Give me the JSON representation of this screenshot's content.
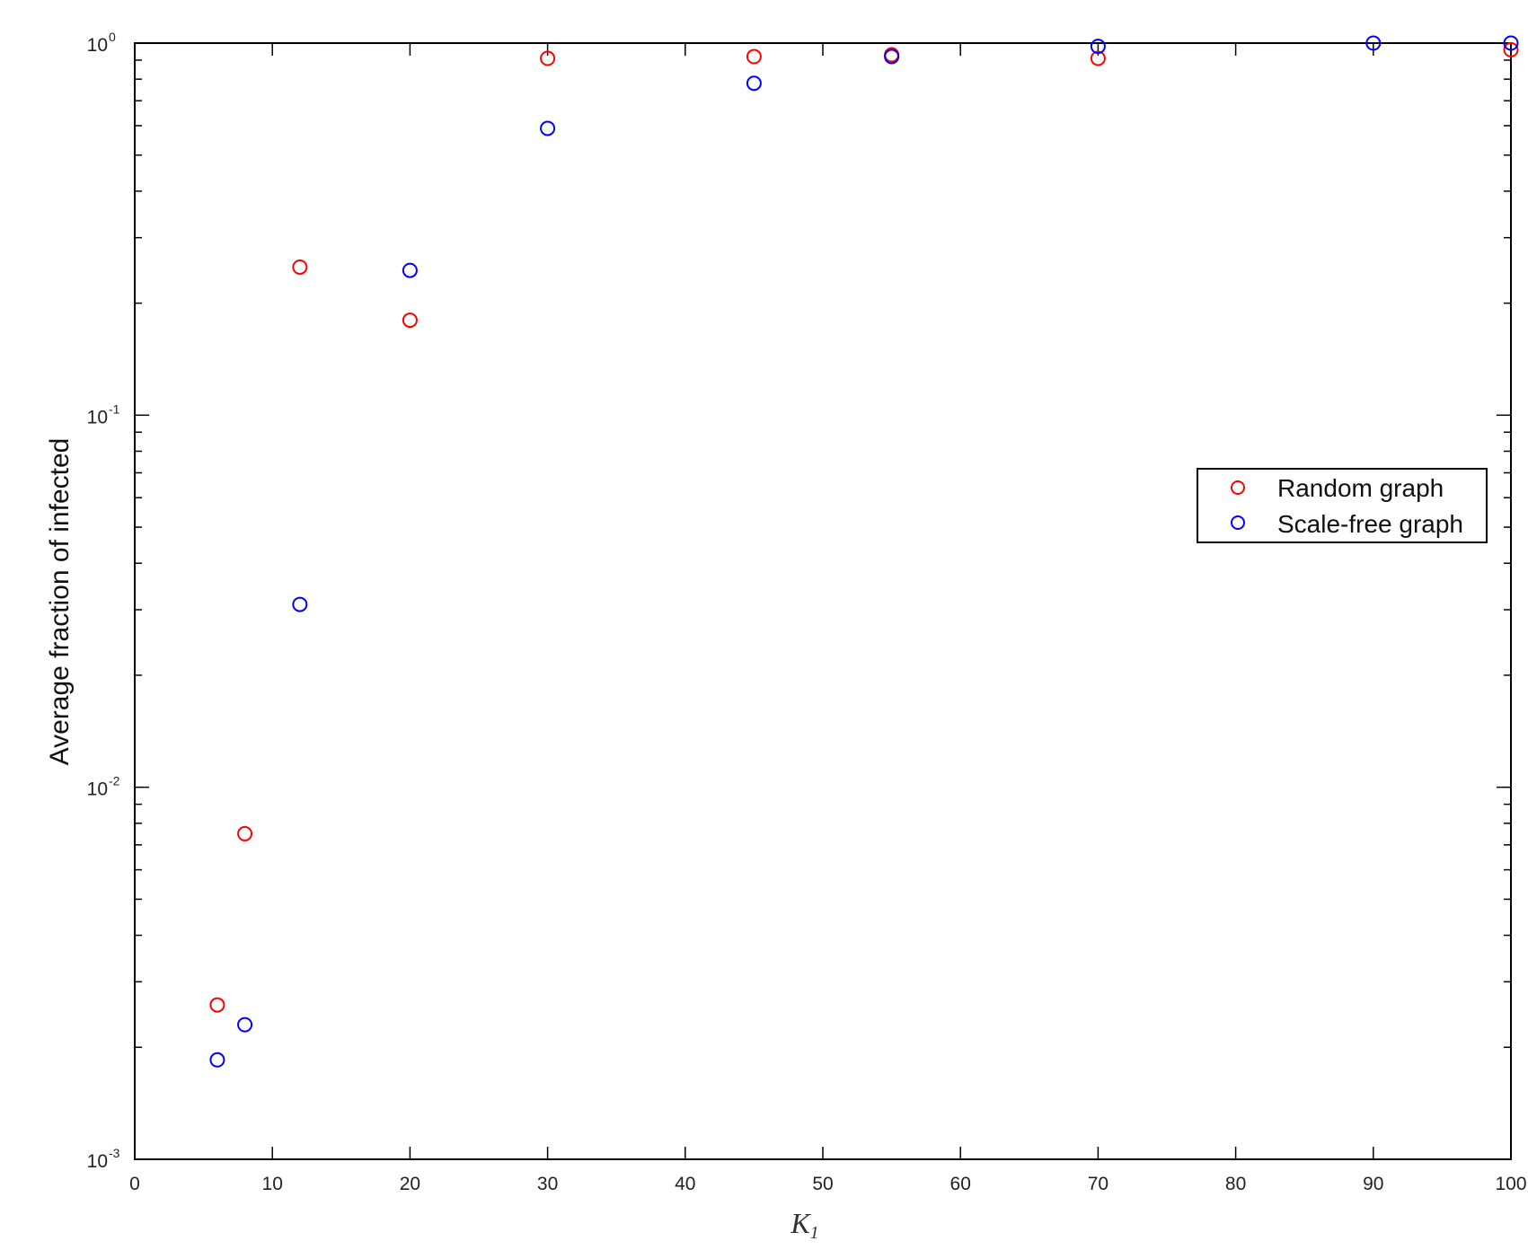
{
  "chart_data": {
    "type": "scatter",
    "xlabel": "K",
    "xlabel_subscript": "1",
    "ylabel": "Average fraction of infected",
    "xlim": [
      0,
      100
    ],
    "ylim": [
      0.001,
      1
    ],
    "yscale": "log",
    "x_ticks": [
      "0",
      "10",
      "20",
      "30",
      "40",
      "50",
      "60",
      "70",
      "80",
      "90",
      "100"
    ],
    "y_ticks": [
      {
        "base": "10",
        "exp": "-3",
        "value": 0.001
      },
      {
        "base": "10",
        "exp": "-2",
        "value": 0.01
      },
      {
        "base": "10",
        "exp": "-1",
        "value": 0.1
      },
      {
        "base": "10",
        "exp": "0",
        "value": 1
      }
    ],
    "grid": false,
    "legend_position": "right",
    "series": [
      {
        "name": "Random graph",
        "color": "#ff0000",
        "marker": "circle-open",
        "points": [
          {
            "x": 6,
            "y": 0.0026
          },
          {
            "x": 8,
            "y": 0.0075
          },
          {
            "x": 12,
            "y": 0.25
          },
          {
            "x": 20,
            "y": 0.18
          },
          {
            "x": 30,
            "y": 0.91
          },
          {
            "x": 45,
            "y": 0.92
          },
          {
            "x": 55,
            "y": 0.93
          },
          {
            "x": 70,
            "y": 0.91
          },
          {
            "x": 100,
            "y": 0.96
          }
        ]
      },
      {
        "name": "Scale-free graph",
        "color": "#0000ff",
        "marker": "circle-open",
        "points": [
          {
            "x": 6,
            "y": 0.00185
          },
          {
            "x": 8,
            "y": 0.0023
          },
          {
            "x": 12,
            "y": 0.031
          },
          {
            "x": 20,
            "y": 0.245
          },
          {
            "x": 30,
            "y": 0.59
          },
          {
            "x": 45,
            "y": 0.78
          },
          {
            "x": 55,
            "y": 0.92
          },
          {
            "x": 70,
            "y": 0.98
          },
          {
            "x": 90,
            "y": 1.0
          },
          {
            "x": 100,
            "y": 1.0
          }
        ]
      }
    ]
  }
}
